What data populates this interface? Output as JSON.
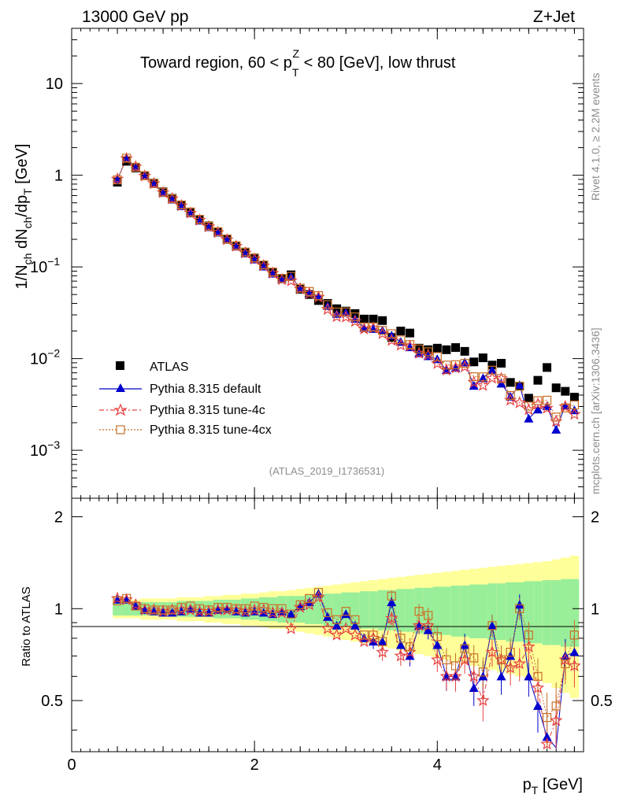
{
  "header": {
    "left": "13000 GeV pp",
    "right": "Z+Jet"
  },
  "plot_title": "Toward region, 60 < p",
  "plot_title_parts": {
    "a": "Toward region, 60 < p",
    "sup": "Z",
    "sub": "T",
    "b": " < 80 [GeV], low thrust"
  },
  "side_labels": {
    "rivet": "Rivet 4.1.0, ≥ 2.2M events",
    "mcplots": "mcplots.cern.ch [arXiv:1306.3436]"
  },
  "analysis_tag": "(ATLAS_2019_I1736531)",
  "axes": {
    "ylabel_main": {
      "a": "1/N",
      "s1": "ch",
      "b": " dN",
      "s2": "ch",
      "c": "/dp",
      "s3": "T",
      "d": " [GeV]"
    },
    "ylabel_ratio": "Ratio to ATLAS",
    "xlabel": {
      "a": "p",
      "s": "T",
      "b": " [GeV]"
    },
    "x_ticks": [
      "0",
      "2",
      "4"
    ],
    "y_ticks_main": [
      {
        "base": "10",
        "exp": ""
      },
      {
        "base": "1",
        "exp": ""
      },
      {
        "base": "10",
        "exp": "−1"
      },
      {
        "base": "10",
        "exp": "−2"
      },
      {
        "base": "10",
        "exp": "−3"
      }
    ],
    "y_ticks_ratio": [
      "2",
      "1",
      "0.5"
    ]
  },
  "legend": [
    {
      "label": "ATLAS",
      "color": "#000000",
      "marker": "square"
    },
    {
      "label": "Pythia 8.315 default",
      "color": "#0000cc",
      "marker": "triangle"
    },
    {
      "label": "Pythia 8.315 tune-4c",
      "color": "#e64040",
      "marker": "star"
    },
    {
      "label": "Pythia 8.315 tune-4cx",
      "color": "#c87028",
      "marker": "open-square"
    }
  ],
  "chart_data": {
    "type": "scatter",
    "title": "Toward region, 60 < pT^Z < 80 [GeV], low thrust",
    "xlabel": "pT [GeV]",
    "ylabel": "1/Nch dNch/dpT [GeV]",
    "xlim": [
      0,
      5.6
    ],
    "ylim_main": [
      0.0003,
      40
    ],
    "ylim_ratio": [
      0.34,
      2.3
    ],
    "x": [
      0.5,
      0.6,
      0.7,
      0.8,
      0.9,
      1.0,
      1.1,
      1.2,
      1.3,
      1.4,
      1.5,
      1.6,
      1.7,
      1.8,
      1.9,
      2.0,
      2.1,
      2.2,
      2.3,
      2.4,
      2.5,
      2.6,
      2.7,
      2.8,
      2.9,
      3.0,
      3.1,
      3.2,
      3.3,
      3.4,
      3.5,
      3.6,
      3.7,
      3.8,
      3.9,
      4.0,
      4.1,
      4.2,
      4.3,
      4.4,
      4.5,
      4.6,
      4.7,
      4.8,
      4.9,
      5.0,
      5.1,
      5.2,
      5.3,
      5.4,
      5.5
    ],
    "series": [
      {
        "name": "ATLAS",
        "values": [
          0.84,
          1.42,
          1.2,
          0.99,
          0.82,
          0.66,
          0.56,
          0.47,
          0.39,
          0.33,
          0.28,
          0.24,
          0.2,
          0.17,
          0.145,
          0.123,
          0.104,
          0.088,
          0.075,
          0.082,
          0.057,
          0.05,
          0.043,
          0.04,
          0.035,
          0.033,
          0.031,
          0.027,
          0.027,
          0.026,
          0.017,
          0.02,
          0.019,
          0.013,
          0.0125,
          0.013,
          0.0125,
          0.0132,
          0.012,
          0.0092,
          0.0102,
          0.0085,
          0.0089,
          0.0055,
          0.005,
          0.0037,
          0.0058,
          0.008,
          0.0048,
          0.0044,
          0.0038
        ],
        "ratio_band_inner": [
          0.05,
          0.05,
          0.05,
          0.05,
          0.05,
          0.05,
          0.05,
          0.06,
          0.06,
          0.06,
          0.06,
          0.07,
          0.07,
          0.07,
          0.08,
          0.08,
          0.09,
          0.09,
          0.1,
          0.1,
          0.1,
          0.11,
          0.11,
          0.12,
          0.12,
          0.13,
          0.13,
          0.14,
          0.14,
          0.15,
          0.15,
          0.16,
          0.16,
          0.17,
          0.17,
          0.18,
          0.18,
          0.19,
          0.19,
          0.2,
          0.2,
          0.21,
          0.21,
          0.22,
          0.22,
          0.23,
          0.23,
          0.24,
          0.24,
          0.25,
          0.25
        ],
        "ratio_band_outer": [
          0.07,
          0.07,
          0.07,
          0.08,
          0.08,
          0.08,
          0.08,
          0.09,
          0.09,
          0.09,
          0.1,
          0.1,
          0.11,
          0.11,
          0.12,
          0.12,
          0.13,
          0.14,
          0.14,
          0.15,
          0.16,
          0.17,
          0.18,
          0.19,
          0.2,
          0.21,
          0.22,
          0.23,
          0.24,
          0.25,
          0.26,
          0.27,
          0.28,
          0.29,
          0.3,
          0.31,
          0.32,
          0.33,
          0.34,
          0.35,
          0.36,
          0.37,
          0.38,
          0.39,
          0.4,
          0.41,
          0.42,
          0.43,
          0.45,
          0.47,
          0.49
        ]
      },
      {
        "name": "Pythia 8.315 default",
        "ratio": [
          1.07,
          1.07,
          1.02,
          0.99,
          0.98,
          0.97,
          0.97,
          0.98,
          1.0,
          0.97,
          0.97,
          0.99,
          1.0,
          0.98,
          0.97,
          0.98,
          0.97,
          0.96,
          0.98,
          0.96,
          1.02,
          1.05,
          1.12,
          0.94,
          0.88,
          0.96,
          0.88,
          0.8,
          0.78,
          0.78,
          1.05,
          0.76,
          0.7,
          0.88,
          0.85,
          0.76,
          0.6,
          0.6,
          0.76,
          0.55,
          0.6,
          0.88,
          0.6,
          0.7,
          1.03,
          0.6,
          0.48,
          0.38,
          0.35,
          0.7,
          0.72
        ]
      },
      {
        "name": "Pythia 8.315 tune-4c",
        "ratio": [
          1.08,
          1.07,
          1.03,
          0.99,
          0.99,
          0.98,
          0.99,
          0.99,
          0.99,
          0.98,
          0.98,
          0.99,
          0.99,
          0.99,
          0.98,
          0.99,
          0.99,
          0.97,
          0.97,
          0.86,
          1.01,
          1.03,
          1.09,
          0.86,
          0.82,
          0.86,
          0.82,
          0.78,
          0.8,
          0.72,
          0.93,
          0.7,
          0.72,
          0.88,
          0.88,
          0.68,
          0.6,
          0.6,
          0.68,
          0.6,
          0.5,
          0.72,
          0.68,
          0.64,
          0.66,
          0.75,
          0.55,
          0.36,
          0.43,
          0.68,
          0.65
        ]
      },
      {
        "name": "Pythia 8.315 tune-4cx",
        "ratio": [
          1.06,
          1.08,
          1.02,
          1.0,
          0.99,
          0.99,
          0.99,
          1.01,
          1.02,
          1.0,
          0.99,
          1.01,
          1.01,
          1.0,
          1.0,
          1.02,
          1.01,
          1.0,
          1.0,
          0.96,
          1.03,
          1.08,
          1.13,
          0.97,
          0.92,
          0.98,
          0.92,
          0.82,
          0.82,
          0.78,
          1.1,
          0.8,
          0.75,
          0.98,
          0.95,
          0.81,
          0.68,
          0.65,
          0.74,
          0.69,
          0.62,
          0.88,
          0.68,
          0.72,
          1.0,
          0.82,
          0.6,
          0.44,
          0.48,
          0.66,
          0.82
        ]
      }
    ]
  }
}
